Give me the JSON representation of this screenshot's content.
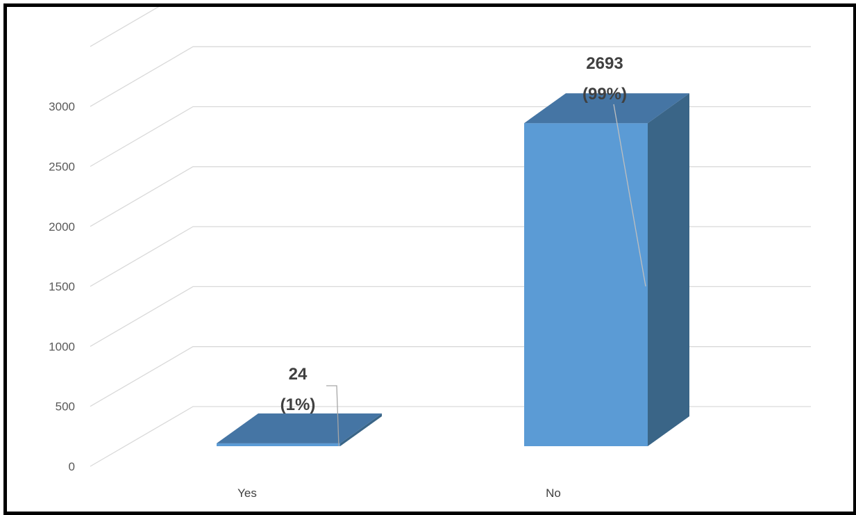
{
  "chart_data": {
    "type": "bar",
    "style": "3d-column",
    "categories": [
      "Yes",
      "No"
    ],
    "values": [
      24,
      2693
    ],
    "percent_labels": [
      "(1%)",
      "(99%)"
    ],
    "ylim": [
      0,
      3000
    ],
    "yticks": [
      0,
      500,
      1000,
      1500,
      2000,
      2500,
      3000
    ],
    "title": "",
    "xlabel": "",
    "ylabel": "",
    "grid": true,
    "legend": "none",
    "colors": {
      "front": "#5B9BD5",
      "top": "#4575A4",
      "side": "#3A6587",
      "grid": "#D9D9D9"
    }
  }
}
